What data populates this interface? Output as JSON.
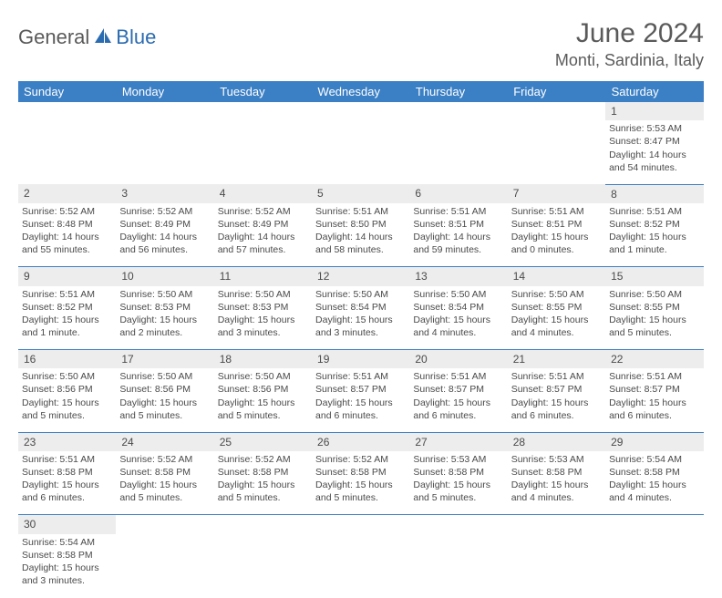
{
  "logo": {
    "general": "General",
    "blue": "Blue"
  },
  "title": {
    "month": "June 2024",
    "location": "Monti, Sardinia, Italy"
  },
  "colors": {
    "header_bg": "#3b7fc4",
    "header_text": "#ffffff",
    "daynum_bg": "#ededed",
    "text": "#4a4a4a",
    "logo_gray": "#5a5a5a",
    "logo_blue": "#2b6bb0",
    "row_border": "#3b7fc4"
  },
  "weekdays": [
    "Sunday",
    "Monday",
    "Tuesday",
    "Wednesday",
    "Thursday",
    "Friday",
    "Saturday"
  ],
  "weeks": [
    {
      "nums": [
        "",
        "",
        "",
        "",
        "",
        "",
        "1"
      ],
      "cells": [
        null,
        null,
        null,
        null,
        null,
        null,
        {
          "sunrise": "Sunrise: 5:53 AM",
          "sunset": "Sunset: 8:47 PM",
          "day1": "Daylight: 14 hours",
          "day2": "and 54 minutes."
        }
      ]
    },
    {
      "nums": [
        "2",
        "3",
        "4",
        "5",
        "6",
        "7",
        "8"
      ],
      "cells": [
        {
          "sunrise": "Sunrise: 5:52 AM",
          "sunset": "Sunset: 8:48 PM",
          "day1": "Daylight: 14 hours",
          "day2": "and 55 minutes."
        },
        {
          "sunrise": "Sunrise: 5:52 AM",
          "sunset": "Sunset: 8:49 PM",
          "day1": "Daylight: 14 hours",
          "day2": "and 56 minutes."
        },
        {
          "sunrise": "Sunrise: 5:52 AM",
          "sunset": "Sunset: 8:49 PM",
          "day1": "Daylight: 14 hours",
          "day2": "and 57 minutes."
        },
        {
          "sunrise": "Sunrise: 5:51 AM",
          "sunset": "Sunset: 8:50 PM",
          "day1": "Daylight: 14 hours",
          "day2": "and 58 minutes."
        },
        {
          "sunrise": "Sunrise: 5:51 AM",
          "sunset": "Sunset: 8:51 PM",
          "day1": "Daylight: 14 hours",
          "day2": "and 59 minutes."
        },
        {
          "sunrise": "Sunrise: 5:51 AM",
          "sunset": "Sunset: 8:51 PM",
          "day1": "Daylight: 15 hours",
          "day2": "and 0 minutes."
        },
        {
          "sunrise": "Sunrise: 5:51 AM",
          "sunset": "Sunset: 8:52 PM",
          "day1": "Daylight: 15 hours",
          "day2": "and 1 minute."
        }
      ]
    },
    {
      "nums": [
        "9",
        "10",
        "11",
        "12",
        "13",
        "14",
        "15"
      ],
      "cells": [
        {
          "sunrise": "Sunrise: 5:51 AM",
          "sunset": "Sunset: 8:52 PM",
          "day1": "Daylight: 15 hours",
          "day2": "and 1 minute."
        },
        {
          "sunrise": "Sunrise: 5:50 AM",
          "sunset": "Sunset: 8:53 PM",
          "day1": "Daylight: 15 hours",
          "day2": "and 2 minutes."
        },
        {
          "sunrise": "Sunrise: 5:50 AM",
          "sunset": "Sunset: 8:53 PM",
          "day1": "Daylight: 15 hours",
          "day2": "and 3 minutes."
        },
        {
          "sunrise": "Sunrise: 5:50 AM",
          "sunset": "Sunset: 8:54 PM",
          "day1": "Daylight: 15 hours",
          "day2": "and 3 minutes."
        },
        {
          "sunrise": "Sunrise: 5:50 AM",
          "sunset": "Sunset: 8:54 PM",
          "day1": "Daylight: 15 hours",
          "day2": "and 4 minutes."
        },
        {
          "sunrise": "Sunrise: 5:50 AM",
          "sunset": "Sunset: 8:55 PM",
          "day1": "Daylight: 15 hours",
          "day2": "and 4 minutes."
        },
        {
          "sunrise": "Sunrise: 5:50 AM",
          "sunset": "Sunset: 8:55 PM",
          "day1": "Daylight: 15 hours",
          "day2": "and 5 minutes."
        }
      ]
    },
    {
      "nums": [
        "16",
        "17",
        "18",
        "19",
        "20",
        "21",
        "22"
      ],
      "cells": [
        {
          "sunrise": "Sunrise: 5:50 AM",
          "sunset": "Sunset: 8:56 PM",
          "day1": "Daylight: 15 hours",
          "day2": "and 5 minutes."
        },
        {
          "sunrise": "Sunrise: 5:50 AM",
          "sunset": "Sunset: 8:56 PM",
          "day1": "Daylight: 15 hours",
          "day2": "and 5 minutes."
        },
        {
          "sunrise": "Sunrise: 5:50 AM",
          "sunset": "Sunset: 8:56 PM",
          "day1": "Daylight: 15 hours",
          "day2": "and 5 minutes."
        },
        {
          "sunrise": "Sunrise: 5:51 AM",
          "sunset": "Sunset: 8:57 PM",
          "day1": "Daylight: 15 hours",
          "day2": "and 6 minutes."
        },
        {
          "sunrise": "Sunrise: 5:51 AM",
          "sunset": "Sunset: 8:57 PM",
          "day1": "Daylight: 15 hours",
          "day2": "and 6 minutes."
        },
        {
          "sunrise": "Sunrise: 5:51 AM",
          "sunset": "Sunset: 8:57 PM",
          "day1": "Daylight: 15 hours",
          "day2": "and 6 minutes."
        },
        {
          "sunrise": "Sunrise: 5:51 AM",
          "sunset": "Sunset: 8:57 PM",
          "day1": "Daylight: 15 hours",
          "day2": "and 6 minutes."
        }
      ]
    },
    {
      "nums": [
        "23",
        "24",
        "25",
        "26",
        "27",
        "28",
        "29"
      ],
      "cells": [
        {
          "sunrise": "Sunrise: 5:51 AM",
          "sunset": "Sunset: 8:58 PM",
          "day1": "Daylight: 15 hours",
          "day2": "and 6 minutes."
        },
        {
          "sunrise": "Sunrise: 5:52 AM",
          "sunset": "Sunset: 8:58 PM",
          "day1": "Daylight: 15 hours",
          "day2": "and 5 minutes."
        },
        {
          "sunrise": "Sunrise: 5:52 AM",
          "sunset": "Sunset: 8:58 PM",
          "day1": "Daylight: 15 hours",
          "day2": "and 5 minutes."
        },
        {
          "sunrise": "Sunrise: 5:52 AM",
          "sunset": "Sunset: 8:58 PM",
          "day1": "Daylight: 15 hours",
          "day2": "and 5 minutes."
        },
        {
          "sunrise": "Sunrise: 5:53 AM",
          "sunset": "Sunset: 8:58 PM",
          "day1": "Daylight: 15 hours",
          "day2": "and 5 minutes."
        },
        {
          "sunrise": "Sunrise: 5:53 AM",
          "sunset": "Sunset: 8:58 PM",
          "day1": "Daylight: 15 hours",
          "day2": "and 4 minutes."
        },
        {
          "sunrise": "Sunrise: 5:54 AM",
          "sunset": "Sunset: 8:58 PM",
          "day1": "Daylight: 15 hours",
          "day2": "and 4 minutes."
        }
      ]
    },
    {
      "nums": [
        "30",
        "",
        "",
        "",
        "",
        "",
        ""
      ],
      "cells": [
        {
          "sunrise": "Sunrise: 5:54 AM",
          "sunset": "Sunset: 8:58 PM",
          "day1": "Daylight: 15 hours",
          "day2": "and 3 minutes."
        },
        null,
        null,
        null,
        null,
        null,
        null
      ]
    }
  ]
}
